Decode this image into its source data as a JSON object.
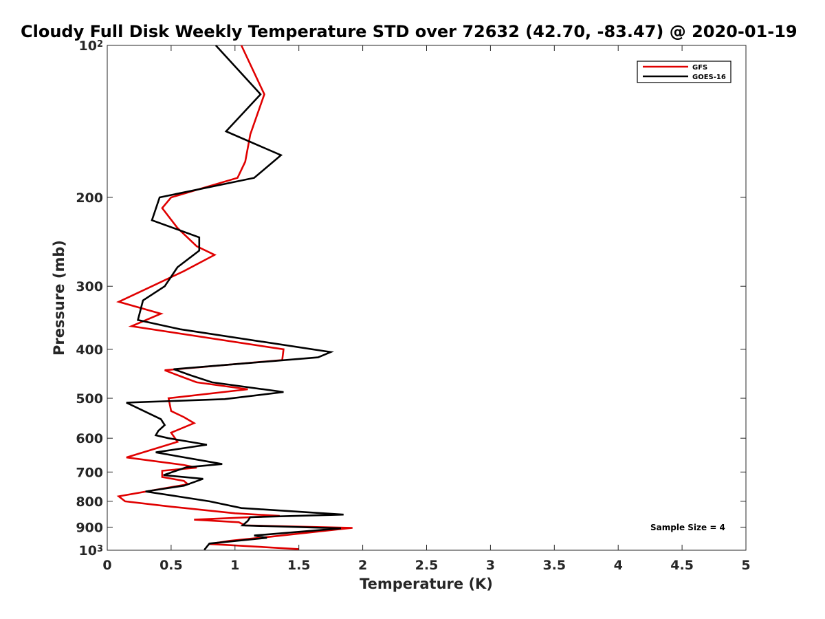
{
  "chart_data": {
    "type": "line",
    "title": "Cloudy Full Disk Weekly Temperature STD over 72632 (42.70, -83.47) @ 2020-01-19",
    "xlabel": "Temperature (K)",
    "ylabel": "Pressure (mb)",
    "xlim": [
      0,
      5
    ],
    "ylim": [
      1000,
      100
    ],
    "yscale": "log",
    "y_reversed": true,
    "grid": false,
    "x_ticks": [
      {
        "value": 0,
        "label": "0"
      },
      {
        "value": 0.5,
        "label": "0.5"
      },
      {
        "value": 1,
        "label": "1"
      },
      {
        "value": 1.5,
        "label": "1.5"
      },
      {
        "value": 2,
        "label": "2"
      },
      {
        "value": 2.5,
        "label": "2.5"
      },
      {
        "value": 3,
        "label": "3"
      },
      {
        "value": 3.5,
        "label": "3.5"
      },
      {
        "value": 4,
        "label": "4"
      },
      {
        "value": 4.5,
        "label": "4.5"
      },
      {
        "value": 5,
        "label": "5"
      }
    ],
    "y_ticks": [
      {
        "value": 100,
        "base": "10",
        "exp": "2"
      },
      {
        "value": 200,
        "base": "200",
        "exp": ""
      },
      {
        "value": 300,
        "base": "300",
        "exp": ""
      },
      {
        "value": 400,
        "base": "400",
        "exp": ""
      },
      {
        "value": 500,
        "base": "500",
        "exp": ""
      },
      {
        "value": 600,
        "base": "600",
        "exp": ""
      },
      {
        "value": 700,
        "base": "700",
        "exp": ""
      },
      {
        "value": 800,
        "base": "800",
        "exp": ""
      },
      {
        "value": 900,
        "base": "900",
        "exp": ""
      },
      {
        "value": 1000,
        "base": "10",
        "exp": "3"
      }
    ],
    "legend_position": "top-right",
    "series": [
      {
        "name": "GFS",
        "color": "#e00000",
        "points": [
          [
            1.05,
            100
          ],
          [
            1.23,
            125
          ],
          [
            1.12,
            150
          ],
          [
            1.08,
            170
          ],
          [
            1.02,
            183
          ],
          [
            0.5,
            200
          ],
          [
            0.43,
            210
          ],
          [
            0.55,
            230
          ],
          [
            0.7,
            250
          ],
          [
            0.84,
            260
          ],
          [
            0.6,
            280
          ],
          [
            0.35,
            300
          ],
          [
            0.09,
            322
          ],
          [
            0.42,
            340
          ],
          [
            0.19,
            360
          ],
          [
            1.38,
            400
          ],
          [
            1.37,
            420
          ],
          [
            0.45,
            440
          ],
          [
            0.57,
            452
          ],
          [
            0.7,
            465
          ],
          [
            1.1,
            480
          ],
          [
            0.48,
            500
          ],
          [
            0.5,
            530
          ],
          [
            0.6,
            545
          ],
          [
            0.68,
            560
          ],
          [
            0.5,
            585
          ],
          [
            0.55,
            610
          ],
          [
            0.15,
            655
          ],
          [
            0.6,
            678
          ],
          [
            0.7,
            686
          ],
          [
            0.43,
            696
          ],
          [
            0.43,
            716
          ],
          [
            0.6,
            729
          ],
          [
            0.63,
            740
          ],
          [
            0.5,
            750
          ],
          [
            0.09,
            782
          ],
          [
            0.14,
            800
          ],
          [
            0.5,
            820
          ],
          [
            1.0,
            845
          ],
          [
            1.35,
            855
          ],
          [
            0.68,
            870
          ],
          [
            1.03,
            880
          ],
          [
            1.08,
            893
          ],
          [
            1.92,
            903
          ],
          [
            1.83,
            908
          ],
          [
            1.28,
            940
          ],
          [
            0.96,
            958
          ],
          [
            0.8,
            972
          ],
          [
            1.5,
            995
          ]
        ]
      },
      {
        "name": "GOES-16",
        "color": "#000000",
        "points": [
          [
            0.85,
            100
          ],
          [
            1.2,
            125
          ],
          [
            0.93,
            148
          ],
          [
            1.36,
            165
          ],
          [
            1.15,
            183
          ],
          [
            0.41,
            200
          ],
          [
            0.35,
            222
          ],
          [
            0.72,
            240
          ],
          [
            0.72,
            255
          ],
          [
            0.55,
            275
          ],
          [
            0.45,
            300
          ],
          [
            0.28,
            320
          ],
          [
            0.24,
            350
          ],
          [
            0.57,
            365
          ],
          [
            1.75,
            405
          ],
          [
            1.65,
            415
          ],
          [
            0.52,
            438
          ],
          [
            0.65,
            450
          ],
          [
            0.82,
            465
          ],
          [
            1.38,
            486
          ],
          [
            0.92,
            502
          ],
          [
            0.15,
            510
          ],
          [
            0.42,
            550
          ],
          [
            0.45,
            565
          ],
          [
            0.4,
            580
          ],
          [
            0.38,
            592
          ],
          [
            0.48,
            600
          ],
          [
            0.78,
            618
          ],
          [
            0.38,
            640
          ],
          [
            0.9,
            675
          ],
          [
            0.62,
            685
          ],
          [
            0.44,
            710
          ],
          [
            0.75,
            722
          ],
          [
            0.6,
            745
          ],
          [
            0.3,
            765
          ],
          [
            0.52,
            780
          ],
          [
            0.8,
            800
          ],
          [
            1.05,
            825
          ],
          [
            1.85,
            850
          ],
          [
            1.12,
            860
          ],
          [
            1.1,
            875
          ],
          [
            1.06,
            893
          ],
          [
            1.83,
            905
          ],
          [
            1.15,
            935
          ],
          [
            1.25,
            945
          ],
          [
            0.8,
            970
          ],
          [
            0.76,
            998
          ]
        ]
      }
    ],
    "annotations": [
      {
        "text": "Sample Size = 4",
        "position": "lower-right"
      }
    ]
  }
}
